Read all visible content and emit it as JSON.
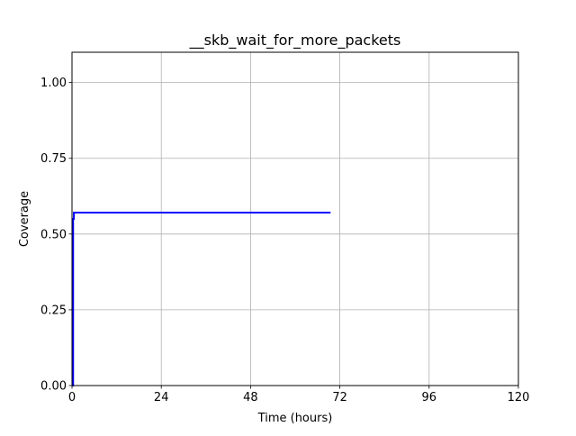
{
  "chart_data": {
    "type": "line",
    "title": "__skb_wait_for_more_packets",
    "xlabel": "Time (hours)",
    "ylabel": "Coverage",
    "xlim": [
      0,
      120
    ],
    "ylim": [
      0,
      1.1
    ],
    "xticks": [
      0,
      24,
      48,
      72,
      96,
      120
    ],
    "xtick_labels": [
      "0",
      "24",
      "48",
      "72",
      "96",
      "120"
    ],
    "yticks": [
      0.0,
      0.25,
      0.5,
      0.75,
      1.0
    ],
    "ytick_labels": [
      "0.00",
      "0.25",
      "0.50",
      "0.75",
      "1.00"
    ],
    "grid": true,
    "series": [
      {
        "color": "#0000ff",
        "x": [
          0,
          0.3,
          0.3,
          0.5,
          0.5,
          69.5
        ],
        "y": [
          0,
          0.0,
          0.55,
          0.55,
          0.571,
          0.571
        ]
      }
    ]
  }
}
